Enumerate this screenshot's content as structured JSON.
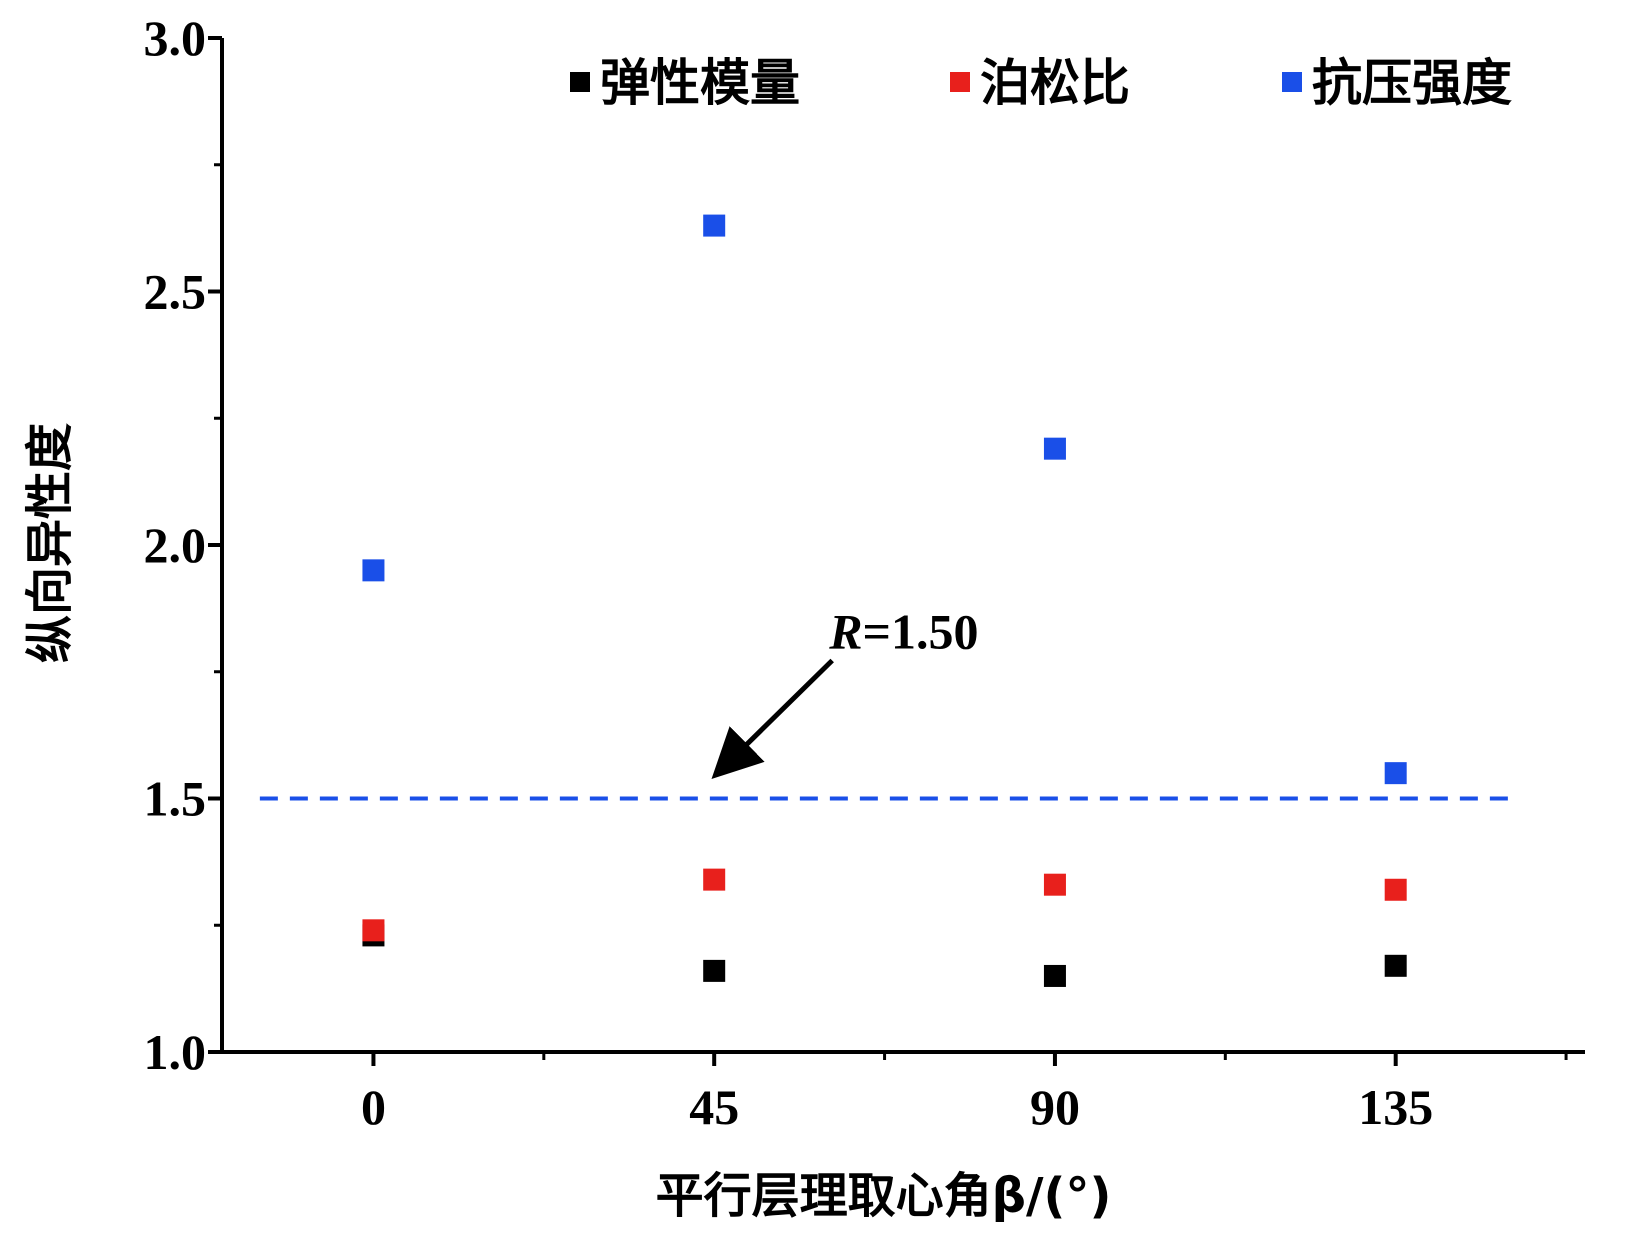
{
  "chart_data": {
    "type": "scatter",
    "x": [
      0,
      45,
      90,
      135
    ],
    "xticks": [
      "0",
      "45",
      "90",
      "135"
    ],
    "yticks": [
      "1.0",
      "1.5",
      "2.0",
      "2.5",
      "3.0"
    ],
    "xlabel": "平行层理取心角β/(°)",
    "ylabel": "纵向异性度",
    "xlim": [
      -20,
      160
    ],
    "ylim": [
      1.0,
      3.0
    ],
    "legend_position": "top",
    "series": [
      {
        "name": "弹性模量",
        "color": "#000000",
        "values": [
          1.23,
          1.16,
          1.15,
          1.17
        ]
      },
      {
        "name": "泊松比",
        "color": "#e8201c",
        "values": [
          1.24,
          1.34,
          1.33,
          1.32
        ]
      },
      {
        "name": "抗压强度",
        "color": "#1a4fe8",
        "values": [
          1.95,
          2.63,
          2.19,
          1.55
        ]
      }
    ],
    "reference_line": {
      "y": 1.5,
      "color": "#1a4fe8",
      "style": "dashed"
    },
    "annotation": {
      "var": "R",
      "text": "=1.50",
      "points_to": {
        "x": 45,
        "y": 1.5
      }
    }
  }
}
